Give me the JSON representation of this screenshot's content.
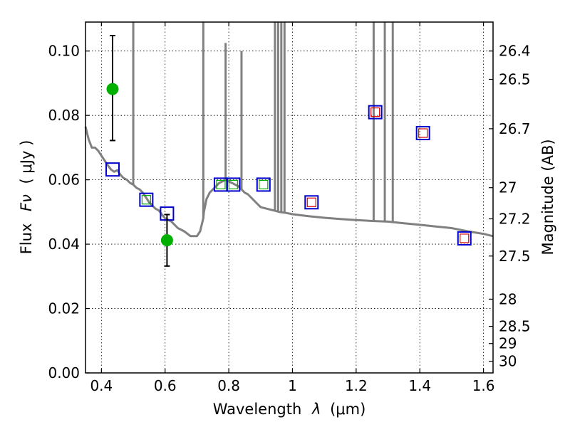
{
  "chart_data": {
    "type": "scatter",
    "xlabel_text": "Wavelength",
    "xlabel_symbol": "λ",
    "xlabel_unit": "(μm)",
    "ylabel_text": "Flux",
    "ylabel_symbol": "Fν",
    "ylabel_unit": "( μJy )",
    "y2label": "Magnitude (AB)",
    "xlim": [
      0.35,
      1.63
    ],
    "ylim": [
      0.0,
      0.109
    ],
    "x_ticks": [
      0.4,
      0.6,
      0.8,
      1.0,
      1.2,
      1.4,
      1.6
    ],
    "x_tick_labels": [
      "0.4",
      "0.6",
      "0.8",
      "1",
      "1.2",
      "1.4",
      "1.6"
    ],
    "y_ticks": [
      0.0,
      0.02,
      0.04,
      0.06,
      0.08,
      0.1
    ],
    "y_tick_labels": [
      "0.00",
      "0.02",
      "0.04",
      "0.06",
      "0.08",
      "0.10"
    ],
    "y2_ticks": [
      {
        "label": "26.4",
        "mag": 26.4
      },
      {
        "label": "26.5",
        "mag": 26.5
      },
      {
        "label": "26.7",
        "mag": 26.7
      },
      {
        "label": "27",
        "mag": 27.0
      },
      {
        "label": "27.2",
        "mag": 27.2
      },
      {
        "label": "27.5",
        "mag": 27.5
      },
      {
        "label": "28",
        "mag": 28.0
      },
      {
        "label": "28.5",
        "mag": 28.5
      },
      {
        "label": "29",
        "mag": 29.0
      },
      {
        "label": "30",
        "mag": 30.0
      }
    ],
    "grid": true,
    "colors": {
      "model": "#808080",
      "detection": "#00b000",
      "model_box": "#0000cc",
      "optical_box": "#00aa00",
      "nir_box": "#dd0000",
      "error_bar": "#000000"
    },
    "series": [
      {
        "name": "observed_flux",
        "marker": "circle",
        "x": [
          0.435,
          0.606
        ],
        "y": [
          0.0882,
          0.0412
        ],
        "yerr_low": [
          0.0722,
          0.0332
        ],
        "yerr_high": [
          0.1048,
          0.0492
        ]
      },
      {
        "name": "model_photometry",
        "marker": "square",
        "x": [
          0.435,
          0.541,
          0.606,
          0.775,
          0.814,
          0.909,
          1.06,
          1.26,
          1.41,
          1.54
        ],
        "y": [
          0.0632,
          0.0538,
          0.0495,
          0.0585,
          0.0585,
          0.0585,
          0.053,
          0.081,
          0.0745,
          0.0418
        ]
      },
      {
        "name": "optical_photometry",
        "marker": "square",
        "x": [
          0.541,
          0.775,
          0.814,
          0.909
        ],
        "y": [
          0.0538,
          0.0585,
          0.0585,
          0.0585
        ]
      },
      {
        "name": "nir_photometry",
        "marker": "square",
        "x": [
          1.06,
          1.26,
          1.41,
          1.54
        ],
        "y": [
          0.053,
          0.081,
          0.0745,
          0.0418
        ]
      },
      {
        "name": "model_sed",
        "marker": "line",
        "x": [
          0.35,
          0.36,
          0.37,
          0.38,
          0.39,
          0.4,
          0.41,
          0.42,
          0.43,
          0.44,
          0.45,
          0.46,
          0.47,
          0.48,
          0.49,
          0.5,
          0.51,
          0.52,
          0.53,
          0.54,
          0.55,
          0.56,
          0.57,
          0.58,
          0.59,
          0.6,
          0.62,
          0.64,
          0.66,
          0.68,
          0.7,
          0.71,
          0.72,
          0.722,
          0.73,
          0.74,
          0.75,
          0.76,
          0.77,
          0.78,
          0.79,
          0.8,
          0.81,
          0.82,
          0.83,
          0.84,
          0.85,
          0.86,
          0.87,
          0.88,
          0.89,
          0.9,
          0.92,
          0.94,
          0.96,
          0.98,
          1.0,
          1.05,
          1.1,
          1.15,
          1.2,
          1.25,
          1.3,
          1.35,
          1.4,
          1.45,
          1.5,
          1.55,
          1.6,
          1.63
        ],
        "y": [
          0.0765,
          0.0725,
          0.07,
          0.07,
          0.069,
          0.0675,
          0.066,
          0.0645,
          0.0632,
          0.0625,
          0.063,
          0.0615,
          0.0605,
          0.06,
          0.059,
          0.0585,
          0.0575,
          0.057,
          0.056,
          0.0545,
          0.053,
          0.052,
          0.051,
          0.0505,
          0.0492,
          0.048,
          0.047,
          0.045,
          0.044,
          0.0425,
          0.0425,
          0.044,
          0.048,
          0.05,
          0.054,
          0.056,
          0.057,
          0.058,
          0.059,
          0.0595,
          0.06,
          0.0595,
          0.059,
          0.0585,
          0.058,
          0.057,
          0.056,
          0.0555,
          0.0545,
          0.0535,
          0.0525,
          0.0515,
          0.051,
          0.0505,
          0.05,
          0.0497,
          0.0493,
          0.0487,
          0.0482,
          0.0478,
          0.0475,
          0.0472,
          0.047,
          0.0465,
          0.046,
          0.0455,
          0.045,
          0.044,
          0.0432,
          0.0425
        ]
      },
      {
        "name": "emission_lines",
        "marker": "vline",
        "x": [
          0.5,
          0.72,
          0.79,
          0.84,
          0.945,
          0.955,
          0.965,
          0.975,
          1.255,
          1.29,
          1.315
        ],
        "y": [
          0.109,
          0.109,
          0.1025,
          0.1,
          0.109,
          0.109,
          0.109,
          0.109,
          0.109,
          0.109,
          0.109
        ]
      }
    ]
  }
}
